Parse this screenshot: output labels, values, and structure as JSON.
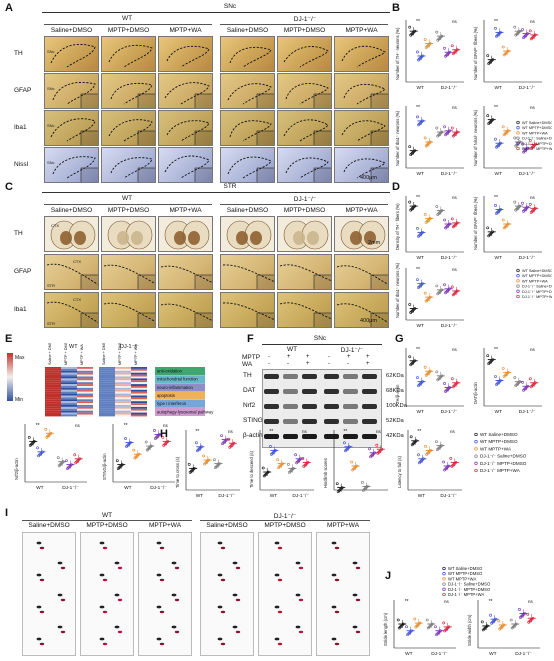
{
  "panels": {
    "A": {
      "label": "A",
      "region": "SNc",
      "groups": [
        "WT",
        "DJ-1⁻/⁻"
      ],
      "columns": [
        "Saline+DMSO",
        "MPTP+DMSO",
        "MPTP+WA",
        "Saline+DMSO",
        "MPTP+DMSO",
        "MPTP+WA"
      ],
      "rows": [
        "TH",
        "GFAP",
        "Iba1",
        "Nissl"
      ],
      "scale": "400μm"
    },
    "B": {
      "label": "B"
    },
    "C": {
      "label": "C",
      "region": "STR",
      "groups": [
        "WT",
        "DJ-1⁻/⁻"
      ],
      "columns": [
        "Saline+DMSO",
        "MPTP+DMSO",
        "MPTP+WA",
        "Saline+DMSO",
        "MPTP+DMSO",
        "MPTP+WA"
      ],
      "rows": [
        "TH",
        "GFAP",
        "Iba1"
      ],
      "scale_th": "2mm",
      "scale_iba": "400μm",
      "ctx": "CTX",
      "str": "STR"
    },
    "D": {
      "label": "D"
    },
    "E": {
      "label": "E",
      "legend_max": "Max",
      "legend_min": "Min",
      "groups": [
        "WT",
        "DJ-1⁻/⁻"
      ],
      "columns": [
        "Saline + DMSO",
        "MPTP + DMSO",
        "MPTP + WA"
      ],
      "categories": [
        "anti-oxidation",
        "mitochondrial function",
        "neuro-inflammation",
        "apoptosis",
        "type I interferon",
        "autophagy-lysosomal pathway"
      ],
      "y_a": "Nrf2/β-actin",
      "y_b": "STING/β-actin"
    },
    "F": {
      "label": "F",
      "region": "SNc",
      "groups": [
        "WT",
        "DJ-1⁻/⁻"
      ],
      "treat_rows": [
        "MPTP",
        "WA"
      ],
      "mptp_signs": [
        "-",
        "+",
        "+",
        "-",
        "+",
        "+"
      ],
      "wa_signs": [
        "-",
        "-",
        "+",
        "-",
        "-",
        "+"
      ],
      "proteins": [
        "TH",
        "DAT",
        "Nrf2",
        "STING",
        "β-actin"
      ],
      "sizes": [
        "62KDa",
        "68KDa",
        "100KDa",
        "52KDa",
        "42KDa"
      ]
    },
    "G": {
      "label": "G",
      "y_a": "TH/β-actin",
      "y_b": "DAT/β-actin"
    },
    "H": {
      "label": "H",
      "y_labels": [
        "Time to cross (s)",
        "Time to descend (s)",
        "Hindlimb scores",
        "Latency to fall (s)"
      ]
    },
    "I": {
      "label": "I",
      "groups": [
        "WT",
        "DJ-1⁻/⁻"
      ],
      "columns": [
        "Saline+DMSO",
        "MPTP+DMSO",
        "MPTP+WA",
        "Saline+DMSO",
        "MPTP+DMSO",
        "MPTP+WA"
      ]
    },
    "J": {
      "label": "J",
      "y_a": "Stride length (cm)",
      "y_b": "Stride width (cm)"
    }
  },
  "axis_groups": [
    "WT",
    "DJ-1⁻/⁻"
  ],
  "sig": {
    "star": "*",
    "ns": "ns"
  },
  "legend": [
    {
      "name": "WT  Saline+DMSO",
      "color": "#111111",
      "marker": "circle"
    },
    {
      "name": "WT  MPTP+DMSO",
      "color": "#3b4fcf",
      "marker": "circle"
    },
    {
      "name": "WT  MPTP+WA",
      "color": "#e78a2a",
      "marker": "circle"
    },
    {
      "name": "DJ-1⁻/⁻ Saline+DMSO",
      "color": "#777777",
      "marker": "circle"
    },
    {
      "name": "DJ-1⁻/⁻ MPTP+DMSO",
      "color": "#7a2fb3",
      "marker": "circle"
    },
    {
      "name": "DJ-1⁻/⁻ MPTP+WA",
      "color": "#d8203a",
      "marker": "circle"
    }
  ],
  "plot_titles": {
    "B1": "Number of TH⁺ neurons (%)",
    "B2": "Number of GFAP⁺ fibers (%)",
    "B3": "Number of Iba1⁺ neurons (%)",
    "B4": "Number of Nissl⁺ neurons (%)",
    "D1": "Density of TH⁺ fibers (%)",
    "D2": "Number of GFAP⁺ fibers (%)",
    "D3": "Number of Iba1⁺ neurons (%)"
  }
}
